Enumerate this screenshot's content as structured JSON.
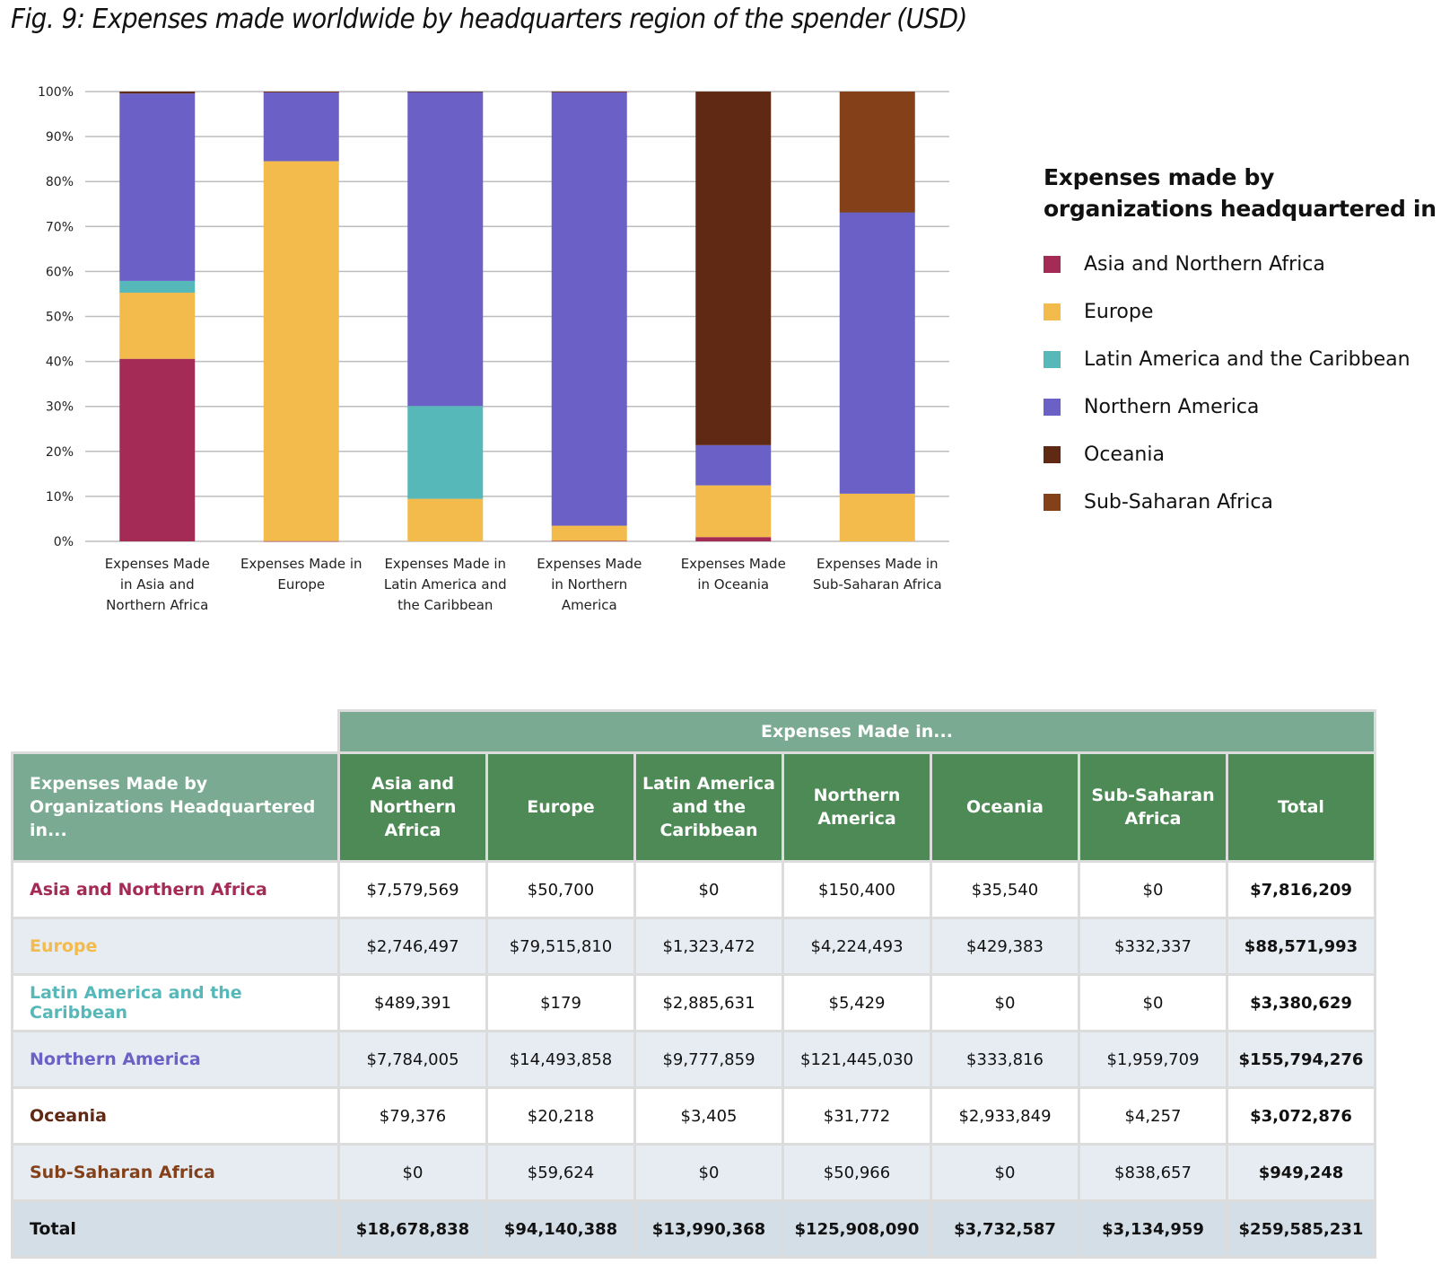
{
  "title": "Fig. 9: Expenses made worldwide by headquarters region of the spender (USD)",
  "chart_data": {
    "type": "bar",
    "stacked": true,
    "normalized": true,
    "title": "Fig. 9: Expenses made worldwide by headquarters region of the spender (USD)",
    "xlabel": "",
    "ylabel": "",
    "ylim": [
      0,
      100
    ],
    "yticks": [
      "0%",
      "10%",
      "20%",
      "30%",
      "40%",
      "50%",
      "60%",
      "70%",
      "80%",
      "90%",
      "100%"
    ],
    "grid": true,
    "legend_position": "right",
    "legend_title": "Expenses made by organizations headquartered in",
    "categories": [
      [
        "Expenses Made",
        "in Asia and",
        "Northern Africa"
      ],
      [
        "Expenses Made in",
        "Europe"
      ],
      [
        "Expenses Made in",
        "Latin America and",
        "the Caribbean"
      ],
      [
        "Expenses Made",
        "in Northern",
        "America"
      ],
      [
        "Expenses Made",
        "in Oceania"
      ],
      [
        "Expenses Made in",
        "Sub-Saharan Africa"
      ]
    ],
    "series": [
      {
        "name": "Asia and Northern Africa",
        "color": "#a52b57",
        "values": [
          40.58,
          0.05,
          0.0,
          0.12,
          0.95,
          0.0
        ]
      },
      {
        "name": "Europe",
        "color": "#f3ba4c",
        "values": [
          14.7,
          84.47,
          9.46,
          3.36,
          11.5,
          10.6
        ]
      },
      {
        "name": "Latin America and the Caribbean",
        "color": "#57b8b9",
        "values": [
          2.62,
          0.0,
          20.63,
          0.0,
          0.0,
          0.0
        ]
      },
      {
        "name": "Northern America",
        "color": "#6b60c6",
        "values": [
          41.67,
          15.4,
          69.89,
          96.46,
          8.94,
          62.51
        ]
      },
      {
        "name": "Oceania",
        "color": "#602913",
        "values": [
          0.42,
          0.02,
          0.02,
          0.03,
          78.6,
          0.14
        ]
      },
      {
        "name": "Sub-Saharan Africa",
        "color": "#834019",
        "values": [
          0.0,
          0.06,
          0.0,
          0.04,
          0.0,
          26.75
        ]
      }
    ]
  },
  "table": {
    "super_header": "Expenses Made in...",
    "row_header_title": "Expenses Made by Organizations Headquartered in...",
    "columns": [
      [
        "Asia and",
        "Northern",
        "Africa"
      ],
      [
        "Europe"
      ],
      [
        "Latin America",
        "and the",
        "Caribbean"
      ],
      [
        "Northern",
        "America"
      ],
      [
        "Oceania"
      ],
      [
        "Sub-Saharan",
        "Africa"
      ],
      [
        "Total"
      ]
    ],
    "rows": [
      {
        "label": "Asia and Northern Africa",
        "color": "#a52b57",
        "cells": [
          "$7,579,569",
          "$50,700",
          "$0",
          "$150,400",
          "$35,540",
          "$0",
          "$7,816,209"
        ]
      },
      {
        "label": "Europe",
        "color": "#f3ba4c",
        "cells": [
          "$2,746,497",
          "$79,515,810",
          "$1,323,472",
          "$4,224,493",
          "$429,383",
          "$332,337",
          "$88,571,993"
        ]
      },
      {
        "label": "Latin America and the Caribbean",
        "color": "#57b8b9",
        "cells": [
          "$489,391",
          "$179",
          "$2,885,631",
          "$5,429",
          "$0",
          "$0",
          "$3,380,629"
        ]
      },
      {
        "label": "Northern America",
        "color": "#6b60c6",
        "cells": [
          "$7,784,005",
          "$14,493,858",
          "$9,777,859",
          "$121,445,030",
          "$333,816",
          "$1,959,709",
          "$155,794,276"
        ]
      },
      {
        "label": "Oceania",
        "color": "#602913",
        "cells": [
          "$79,376",
          "$20,218",
          "$3,405",
          "$31,772",
          "$2,933,849",
          "$4,257",
          "$3,072,876"
        ]
      },
      {
        "label": "Sub-Saharan Africa",
        "color": "#834019",
        "cells": [
          "$0",
          "$59,624",
          "$0",
          "$50,966",
          "$0",
          "$838,657",
          "$949,248"
        ]
      }
    ],
    "total_row": {
      "label": "Total",
      "cells": [
        "$18,678,838",
        "$94,140,388",
        "$13,990,368",
        "$125,908,090",
        "$3,732,587",
        "$3,134,959",
        "$259,585,231"
      ]
    }
  }
}
